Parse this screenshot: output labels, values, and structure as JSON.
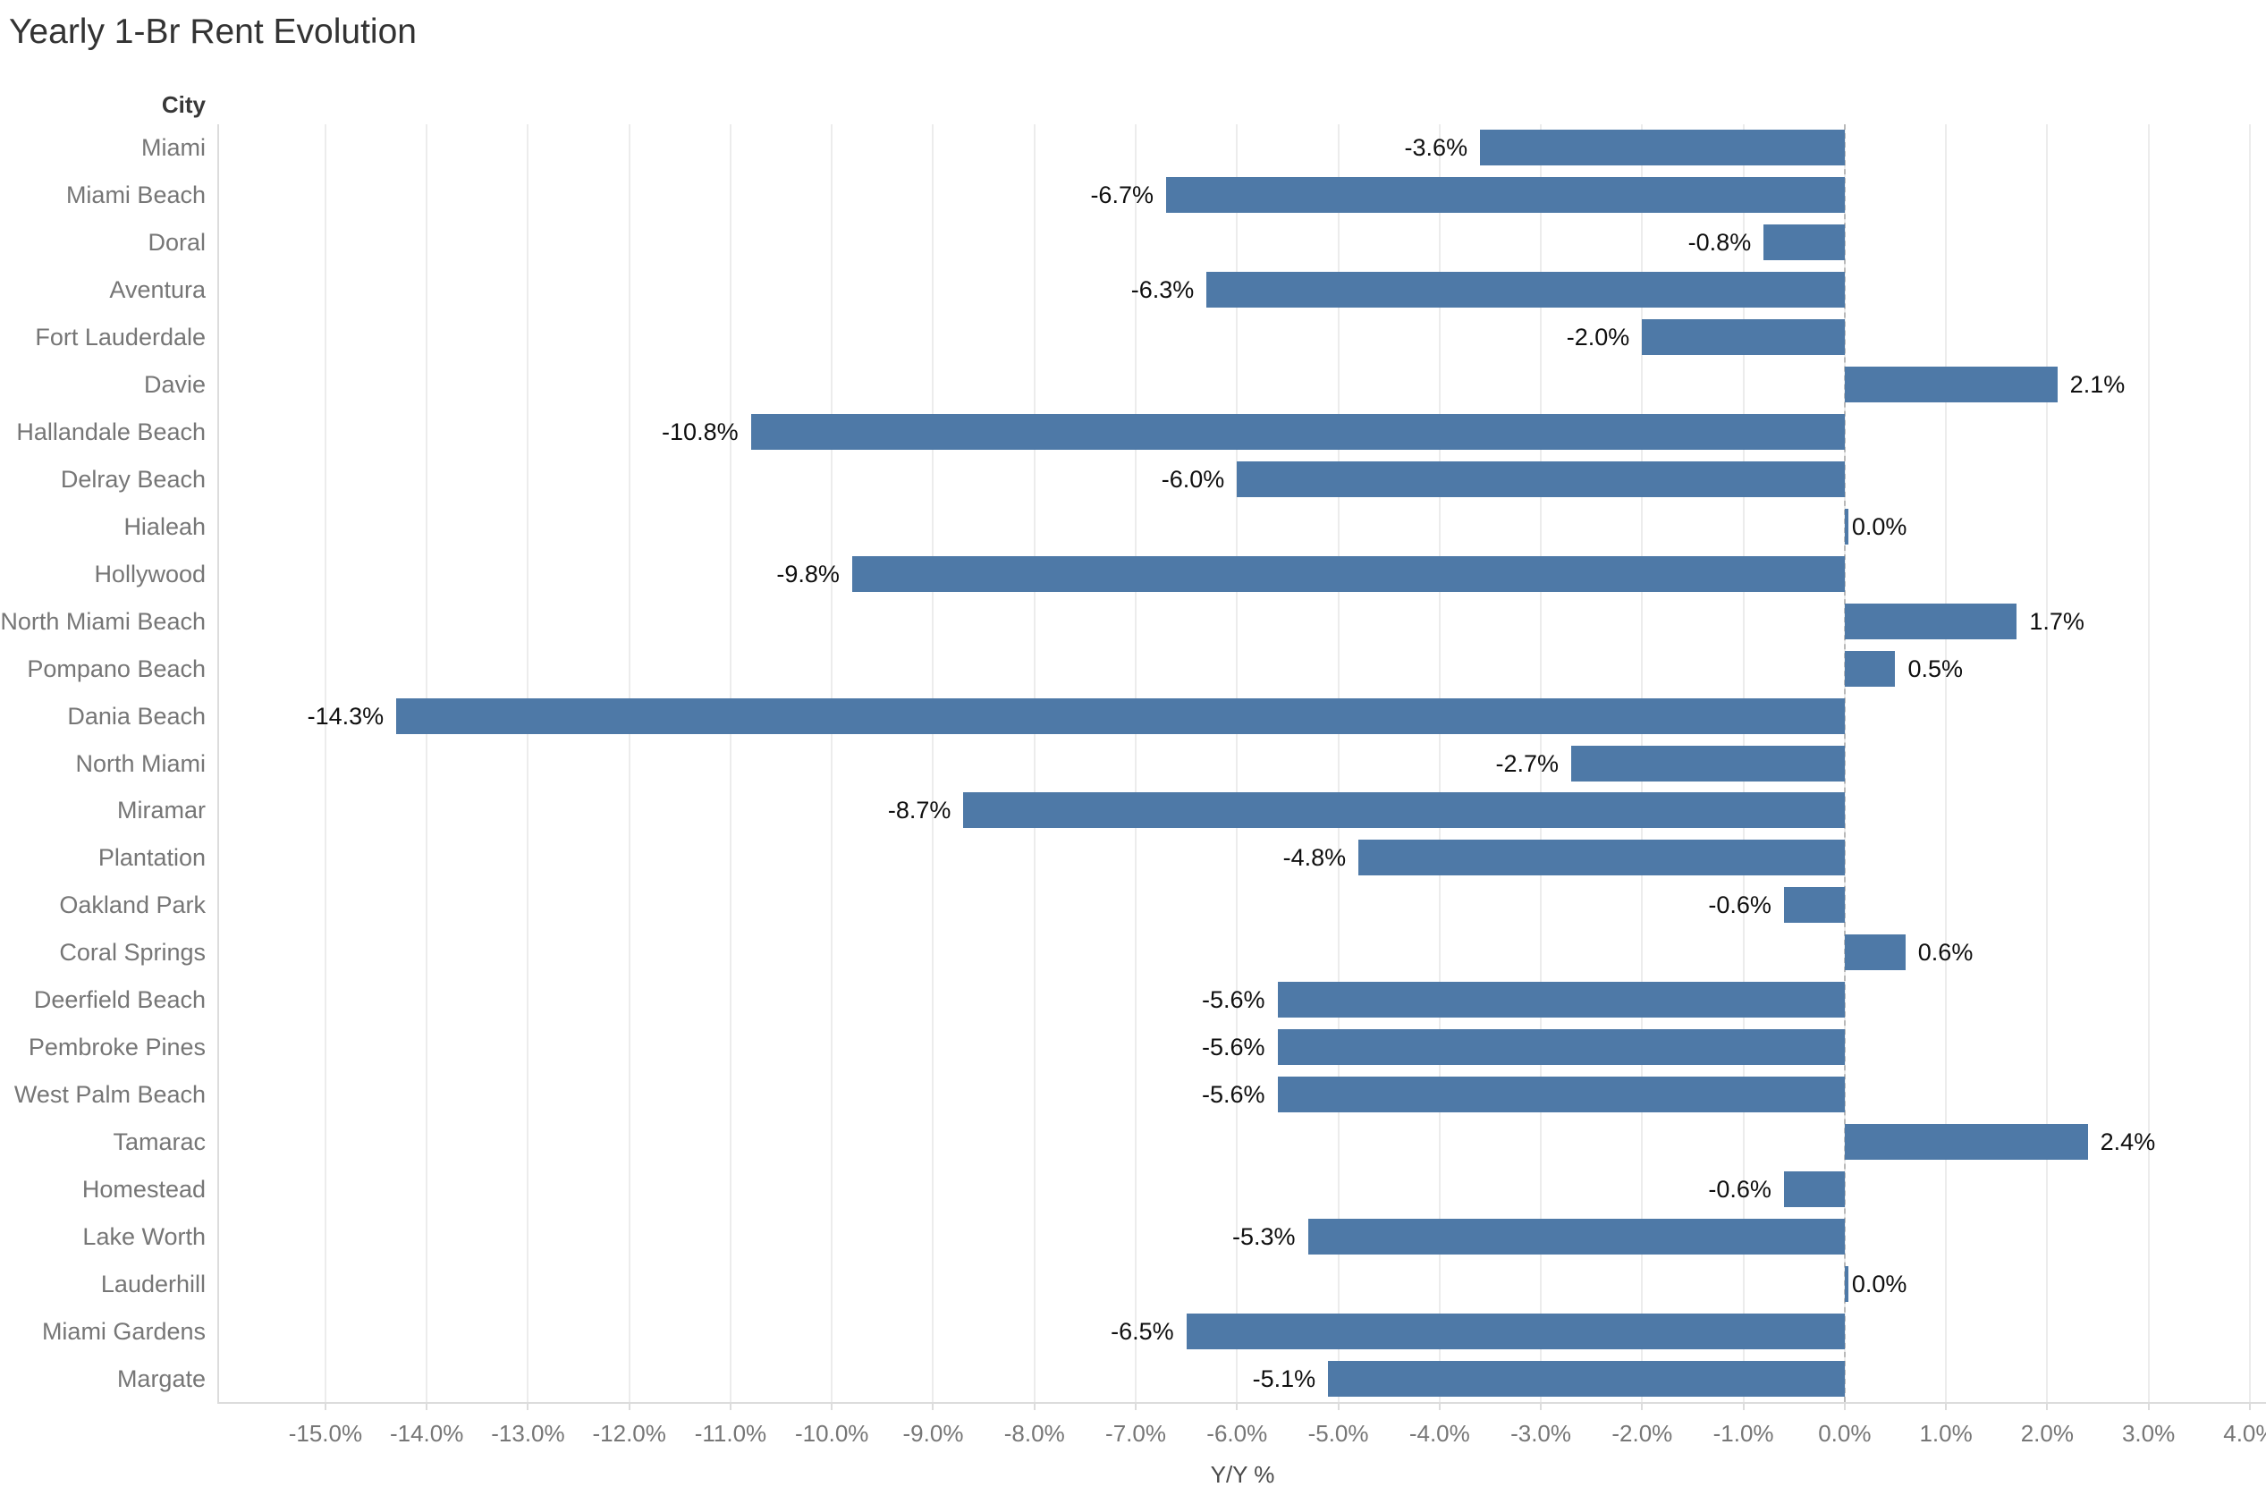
{
  "title": "Yearly 1-Br Rent Evolution",
  "column_header": "City",
  "axis": {
    "title": "Y/Y %",
    "tick_values": [
      -15,
      -14,
      -13,
      -12,
      -11,
      -10,
      -9,
      -8,
      -7,
      -6,
      -5,
      -4,
      -3,
      -2,
      -1,
      0,
      1,
      2,
      3,
      4
    ],
    "tick_labels": [
      "-15.0%",
      "-14.0%",
      "-13.0%",
      "-12.0%",
      "-11.0%",
      "-10.0%",
      "-9.0%",
      "-8.0%",
      "-7.0%",
      "-6.0%",
      "-5.0%",
      "-4.0%",
      "-3.0%",
      "-2.0%",
      "-1.0%",
      "0.0%",
      "1.0%",
      "2.0%",
      "3.0%",
      "4.0%"
    ]
  },
  "colors": {
    "bar": "#4e79a7",
    "gridline": "#ececec",
    "zero_line": "#b9b9b9",
    "axis_border": "#dcdcdc",
    "city_label_text": "#767676",
    "tick_label_text": "#767676",
    "value_label_text": "#0f0f0f",
    "title_text": "#333333"
  },
  "chart_data": {
    "type": "bar",
    "orientation": "horizontal",
    "title": "Yearly 1-Br Rent Evolution",
    "xlabel": "Y/Y %",
    "ylabel": "City",
    "xlim": [
      -16.05,
      4.16
    ],
    "grid": "vertical-only",
    "zero_line": "dashed",
    "legend": "none",
    "categories": [
      "Miami",
      "Miami Beach",
      "Doral",
      "Aventura",
      "Fort Lauderdale",
      "Davie",
      "Hallandale Beach",
      "Delray Beach",
      "Hialeah",
      "Hollywood",
      "North Miami Beach",
      "Pompano Beach",
      "Dania Beach",
      "North Miami",
      "Miramar",
      "Plantation",
      "Oakland Park",
      "Coral Springs",
      "Deerfield Beach",
      "Pembroke Pines",
      "West Palm Beach",
      "Tamarac",
      "Homestead",
      "Lake Worth",
      "Lauderhill",
      "Miami Gardens",
      "Margate"
    ],
    "values": [
      -3.6,
      -6.7,
      -0.8,
      -6.3,
      -2.0,
      2.1,
      -10.8,
      -6.0,
      0.0,
      -9.8,
      1.7,
      0.5,
      -14.3,
      -2.7,
      -8.7,
      -4.8,
      -0.6,
      0.6,
      -5.6,
      -5.6,
      -5.6,
      2.4,
      -0.6,
      -5.3,
      0.0,
      -6.5,
      -5.1
    ],
    "value_labels": [
      "-3.6%",
      "-6.7%",
      "-0.8%",
      "-6.3%",
      "-2.0%",
      "2.1%",
      "-10.8%",
      "-6.0%",
      "0.0%",
      "-9.8%",
      "1.7%",
      "0.5%",
      "-14.3%",
      "-2.7%",
      "-8.7%",
      "-4.8%",
      "-0.6%",
      "0.6%",
      "-5.6%",
      "-5.6%",
      "-5.6%",
      "2.4%",
      "-0.6%",
      "-5.3%",
      "0.0%",
      "-6.5%",
      "-5.1%"
    ]
  }
}
